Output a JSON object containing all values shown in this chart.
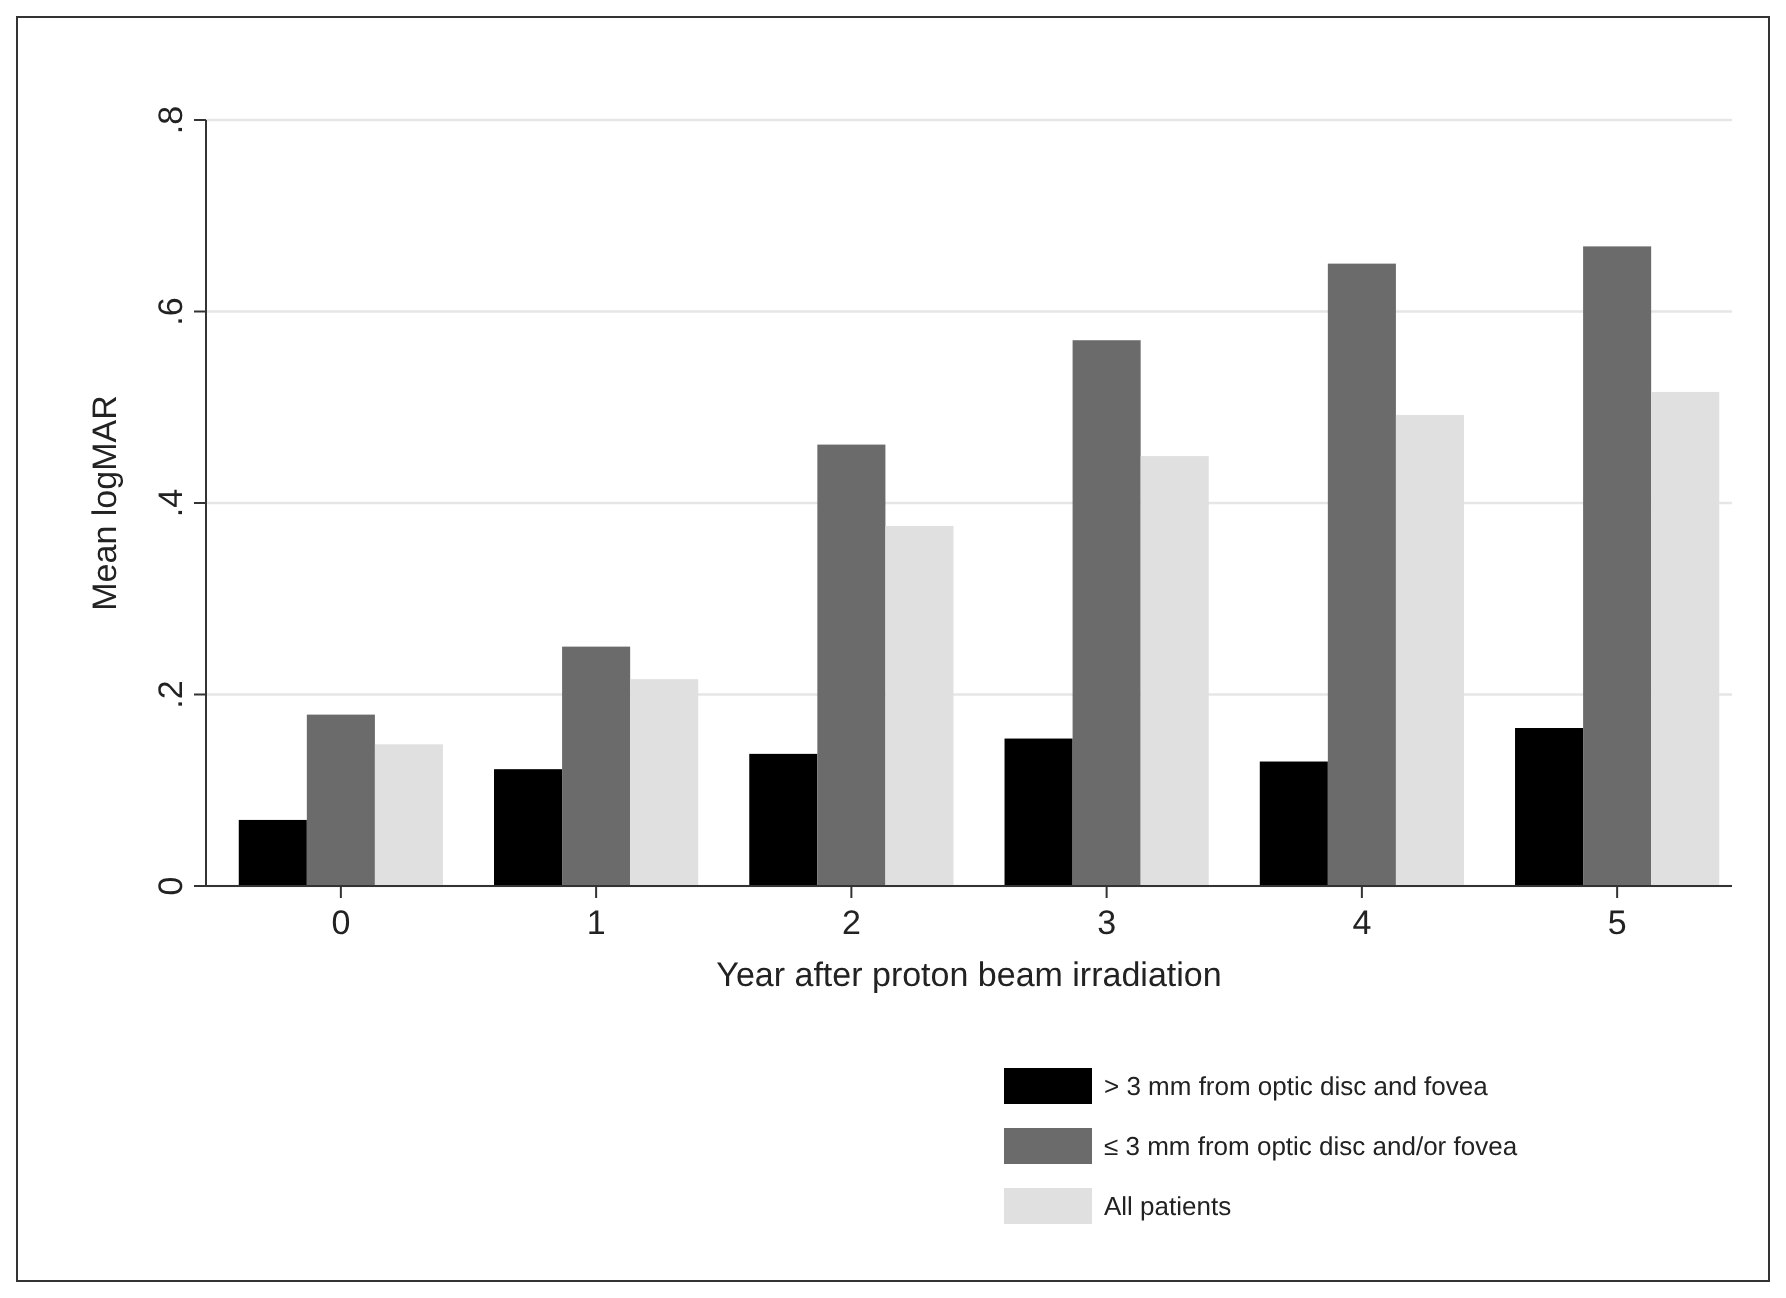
{
  "chart_data": {
    "type": "bar",
    "xlabel": "Year after proton beam irradiation",
    "ylabel": "Mean logMAR",
    "categories": [
      "0",
      "1",
      "2",
      "3",
      "4",
      "5"
    ],
    "series": [
      {
        "name": "> 3 mm from optic disc and fovea",
        "color": "#000000",
        "values": [
          0.069,
          0.122,
          0.138,
          0.154,
          0.13,
          0.165
        ]
      },
      {
        "name": "≤ 3 mm from optic disc and/or fovea",
        "color": "#6b6b6b",
        "values": [
          0.179,
          0.25,
          0.461,
          0.57,
          0.65,
          0.668
        ]
      },
      {
        "name": "All patients",
        "color": "#e0e0e0",
        "values": [
          0.148,
          0.216,
          0.376,
          0.449,
          0.492,
          0.516
        ]
      }
    ],
    "ylim": [
      0,
      0.8
    ],
    "yticks": [
      {
        "value": 0,
        "label": "0"
      },
      {
        "value": 0.2,
        "label": ".2"
      },
      {
        "value": 0.4,
        "label": ".4"
      },
      {
        "value": 0.6,
        "label": ".6"
      },
      {
        "value": 0.8,
        "label": ".8"
      }
    ],
    "grid": "y",
    "legend": "bottom right"
  }
}
